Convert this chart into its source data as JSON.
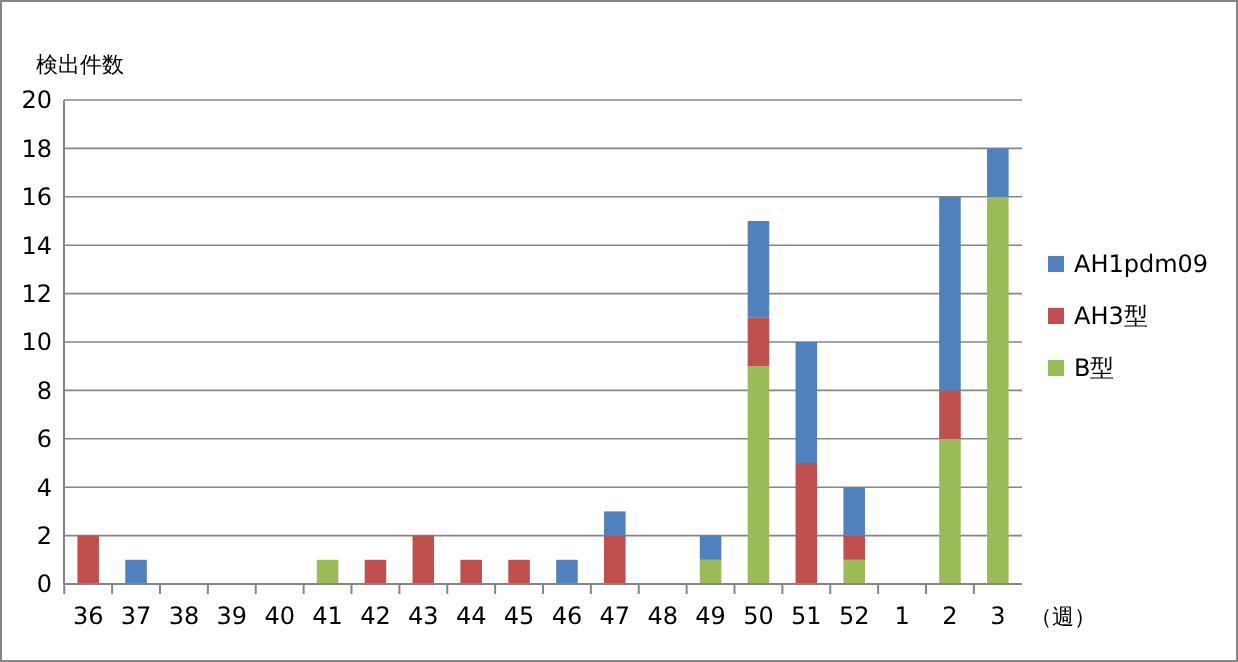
{
  "chart_data": {
    "type": "bar",
    "stacked": true,
    "ylabel": "検出件数",
    "xlabel": "（週）",
    "categories": [
      "36",
      "37",
      "38",
      "39",
      "40",
      "41",
      "42",
      "43",
      "44",
      "45",
      "46",
      "47",
      "48",
      "49",
      "50",
      "51",
      "52",
      "1",
      "2",
      "3"
    ],
    "series": [
      {
        "name": "B型",
        "color": "#9bbb59",
        "values": [
          0,
          0,
          0,
          0,
          0,
          1,
          0,
          0,
          0,
          0,
          0,
          0,
          0,
          1,
          9,
          0,
          1,
          0,
          6,
          16
        ]
      },
      {
        "name": "AH3型",
        "color": "#c0504d",
        "values": [
          2,
          0,
          0,
          0,
          0,
          0,
          1,
          2,
          1,
          1,
          0,
          2,
          0,
          0,
          2,
          5,
          1,
          0,
          2,
          0
        ]
      },
      {
        "name": "AH1pdm09",
        "color": "#4f81bd",
        "values": [
          0,
          1,
          0,
          0,
          0,
          0,
          0,
          0,
          0,
          0,
          1,
          1,
          0,
          1,
          4,
          5,
          2,
          0,
          8,
          2
        ]
      }
    ],
    "ylim": [
      0,
      20
    ],
    "yticks": [
      0,
      2,
      4,
      6,
      8,
      10,
      12,
      14,
      16,
      18,
      20
    ],
    "grid": "y",
    "legend": "right"
  }
}
